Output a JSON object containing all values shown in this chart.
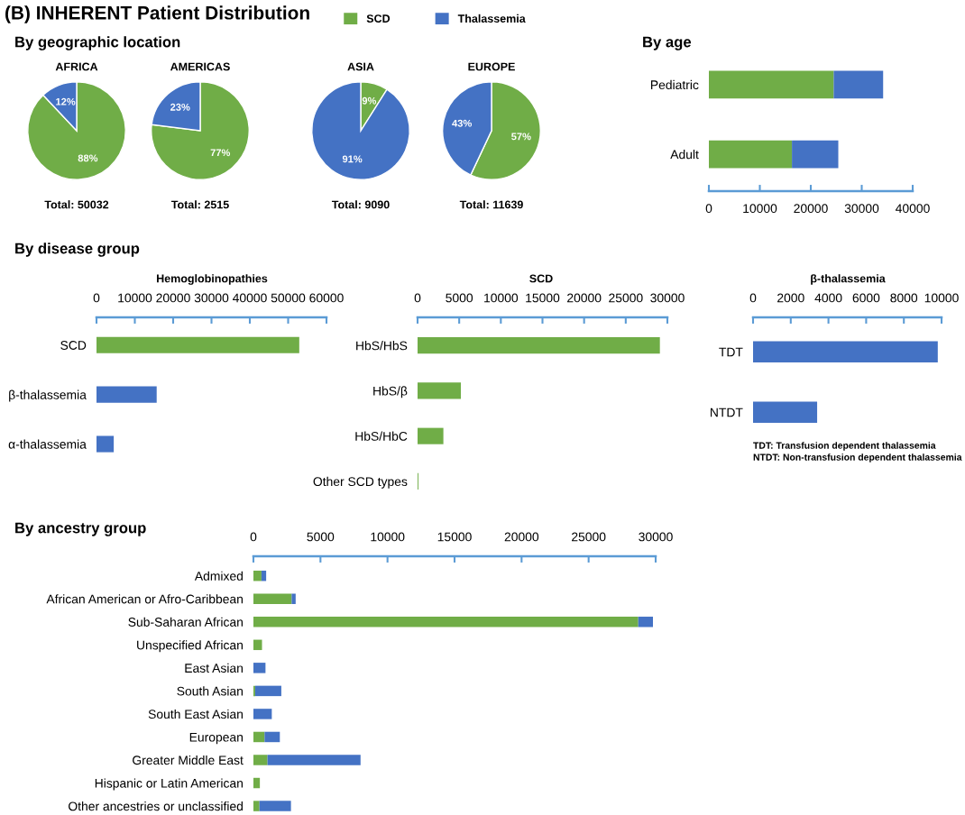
{
  "chart_data": [
    {
      "type": "other",
      "title": "(B) INHERENT Patient Distribution"
    },
    {
      "type": "pie",
      "title": "AFRICA",
      "subtitle": "By geographic location",
      "legend": "top",
      "categories": [
        "SCD",
        "Thalassemia"
      ],
      "values": [
        88,
        12
      ],
      "colors": [
        "#70ad47",
        "#4472c4"
      ],
      "value_labels": [
        "88%",
        "12%"
      ],
      "annotations": [
        "Total: 50032"
      ]
    },
    {
      "type": "pie",
      "title": "AMERICAS",
      "categories": [
        null,
        null
      ],
      "values": [
        77,
        23
      ],
      "colors": [
        "#70ad47",
        "#4472c4"
      ],
      "value_labels": [
        "77%",
        "23%"
      ],
      "annotations": [
        "Total: 2515"
      ]
    },
    {
      "type": "pie",
      "title": "ASIA",
      "categories": [
        null,
        null
      ],
      "values": [
        9,
        91
      ],
      "colors": [
        "#70ad47",
        "#4472c4"
      ],
      "value_labels": [
        "9%",
        "91%"
      ],
      "annotations": [
        "Total: 9090"
      ]
    },
    {
      "type": "pie",
      "title": "EUROPE",
      "categories": [
        null,
        null
      ],
      "values": [
        57,
        43
      ],
      "colors": [
        "#70ad47",
        "#4472c4"
      ],
      "value_labels": [
        "57%",
        "43%"
      ],
      "annotations": [
        "Total: 11639"
      ]
    },
    {
      "type": "bar",
      "orientation": "horizontal",
      "stacked": true,
      "subtitle": "By age",
      "categories": [
        "Pediatric",
        "Adult"
      ],
      "series": [
        {
          "color": "#70ad47",
          "values": [
            24500,
            16300
          ]
        },
        {
          "color": "#4472c4",
          "values": [
            9700,
            9100
          ]
        }
      ],
      "xlim": [
        0,
        40000
      ],
      "xticks": [
        0,
        10000,
        20000,
        30000,
        40000
      ]
    },
    {
      "type": "bar",
      "orientation": "horizontal",
      "title": "Hemoglobinopathies",
      "subtitle": "By disease group",
      "categories": [
        "SCD",
        "β-thalassemia",
        "α-thalassemia"
      ],
      "values": [
        52900,
        15700,
        4500
      ],
      "colors": [
        "#70ad47",
        "#4472c4",
        "#4472c4"
      ],
      "xlim": [
        0,
        60000
      ],
      "xticks": [
        0,
        10000,
        20000,
        30000,
        40000,
        50000,
        60000
      ]
    },
    {
      "type": "bar",
      "orientation": "horizontal",
      "title": "SCD",
      "categories": [
        "HbS/HbS",
        "HbS/β",
        "HbS/HbC",
        "Other SCD types"
      ],
      "values": [
        29100,
        5200,
        3100,
        100
      ],
      "colors": [
        "#70ad47",
        "#70ad47",
        "#70ad47",
        "#70ad47"
      ],
      "xlim": [
        0,
        30000
      ],
      "xticks": [
        0,
        5000,
        10000,
        15000,
        20000,
        25000,
        30000
      ]
    },
    {
      "type": "bar",
      "orientation": "horizontal",
      "title": "β-thalassemia",
      "categories": [
        "TDT",
        "NTDT"
      ],
      "values": [
        9800,
        3400
      ],
      "colors": [
        "#4472c4",
        "#4472c4"
      ],
      "xlim": [
        0,
        10000
      ],
      "xticks": [
        0,
        2000,
        4000,
        6000,
        8000,
        10000
      ],
      "annotations": [
        "TDT: Transfusion dependent thalassemia",
        "NTDT: Non-transfusion dependent thalassemia"
      ]
    },
    {
      "type": "bar",
      "orientation": "horizontal",
      "stacked": true,
      "subtitle": "By ancestry group",
      "categories": [
        "Admixed",
        "African American or Afro-Caribbean",
        "Sub-Saharan African",
        "Unspecified African",
        "East Asian",
        "South Asian",
        "South East Asian",
        "European",
        "Greater Middle East",
        "Hispanic or Latin American",
        "Other ancestries or unclassified"
      ],
      "series": [
        {
          "color": "#70ad47",
          "values": [
            600,
            2850,
            28700,
            640,
            0,
            130,
            0,
            830,
            1050,
            480,
            450
          ]
        },
        {
          "color": "#4472c4",
          "values": [
            350,
            300,
            1100,
            0,
            900,
            1950,
            1370,
            1140,
            6940,
            0,
            2350
          ]
        }
      ],
      "xlim": [
        0,
        30000
      ],
      "xticks": [
        0,
        5000,
        10000,
        15000,
        20000,
        25000,
        30000
      ]
    }
  ]
}
